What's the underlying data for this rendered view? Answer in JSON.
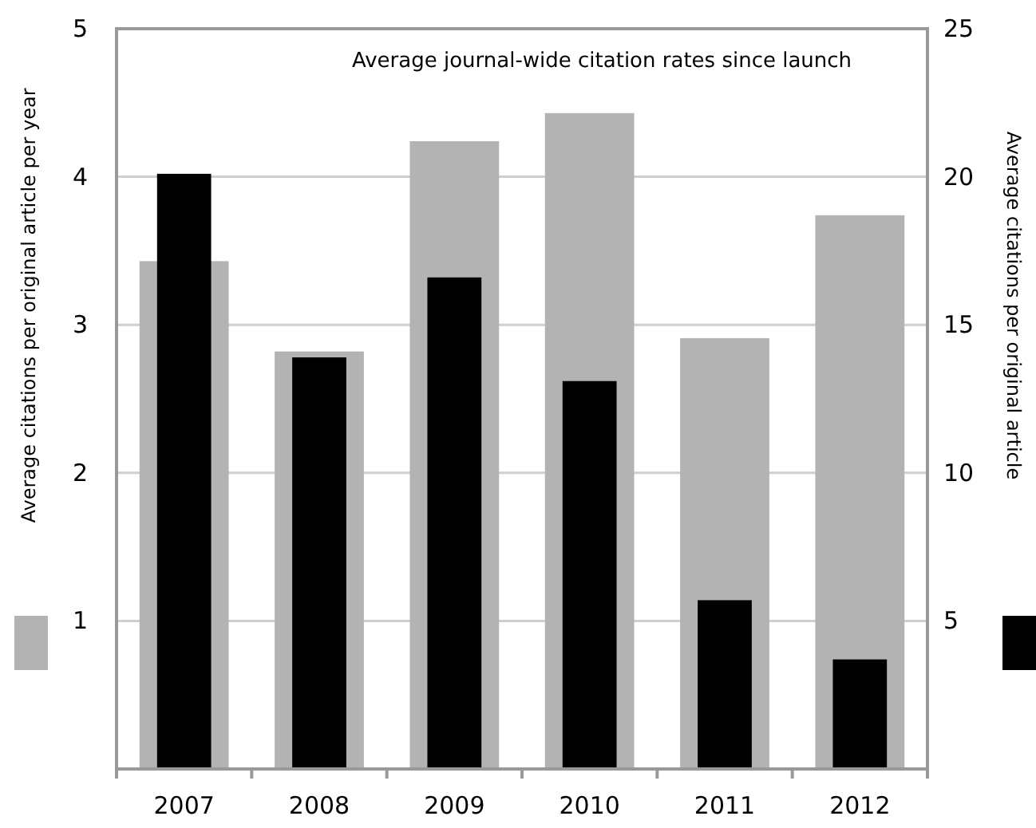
{
  "chart_data": {
    "type": "bar",
    "title": "Average journal-wide citation rates since launch",
    "categories": [
      "2007",
      "2008",
      "2009",
      "2010",
      "2011",
      "2012"
    ],
    "series": [
      {
        "color": "#b3b3b3",
        "values": [
          3.43,
          2.82,
          4.24,
          4.43,
          2.91,
          3.74
        ]
      },
      {
        "color": "#000000",
        "axis": "y2",
        "values": [
          20.1,
          13.9,
          16.6,
          13.1,
          5.7,
          3.7
        ]
      }
    ],
    "ylabel": "Average citations per original article per year",
    "y2label": "Average citations per original article",
    "ylim": [
      0,
      5
    ],
    "yticks": [
      1,
      2,
      3,
      4,
      5
    ],
    "y2lim": [
      0,
      25
    ],
    "y2ticks": [
      5,
      10,
      15,
      20,
      25
    ],
    "grid": "y"
  }
}
